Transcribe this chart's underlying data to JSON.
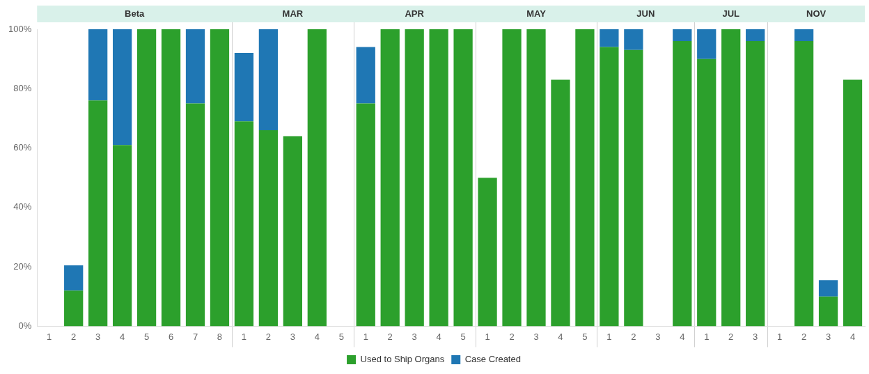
{
  "chart_data": {
    "type": "bar",
    "stacked": true,
    "categories": [
      "1",
      "2",
      "3",
      "4",
      "5",
      "6",
      "7",
      "8",
      "1",
      "2",
      "3",
      "4",
      "5",
      "1",
      "2",
      "3",
      "4",
      "5",
      "1",
      "2",
      "3",
      "4",
      "5",
      "1",
      "2",
      "3",
      "4",
      "1",
      "2",
      "3",
      "1",
      "2",
      "3",
      "4"
    ],
    "annotations": [
      "Beta",
      "MAR",
      "APR",
      "MAY",
      "JUN",
      "JUL",
      "NOV"
    ],
    "series": [
      {
        "name": "Used to Ship Organs",
        "color": "#2ca02c",
        "values": [
          null,
          12,
          76,
          61,
          100,
          100,
          75,
          100,
          69,
          66,
          64,
          100,
          null,
          75,
          100,
          100,
          100,
          100,
          50,
          100,
          100,
          83,
          100,
          94,
          93,
          null,
          96,
          90,
          100,
          96,
          null,
          96,
          10,
          83
        ]
      },
      {
        "name": "Case Created",
        "color": "#1f77b4",
        "values": [
          null,
          8.5,
          24,
          39,
          null,
          null,
          25,
          null,
          23,
          34,
          null,
          null,
          null,
          19,
          null,
          null,
          null,
          null,
          null,
          null,
          null,
          null,
          null,
          6,
          7,
          null,
          4,
          10,
          null,
          4,
          null,
          4,
          5.5,
          null
        ]
      }
    ],
    "ylim": [
      0,
      100
    ],
    "yticks": [
      {
        "value": 0,
        "label": "0%"
      },
      {
        "value": 20,
        "label": "20%"
      },
      {
        "value": 40,
        "label": "40%"
      },
      {
        "value": 60,
        "label": "60%"
      },
      {
        "value": 80,
        "label": "80%"
      },
      {
        "value": 100,
        "label": "100%"
      }
    ],
    "grid": false,
    "legend": "bottom"
  }
}
